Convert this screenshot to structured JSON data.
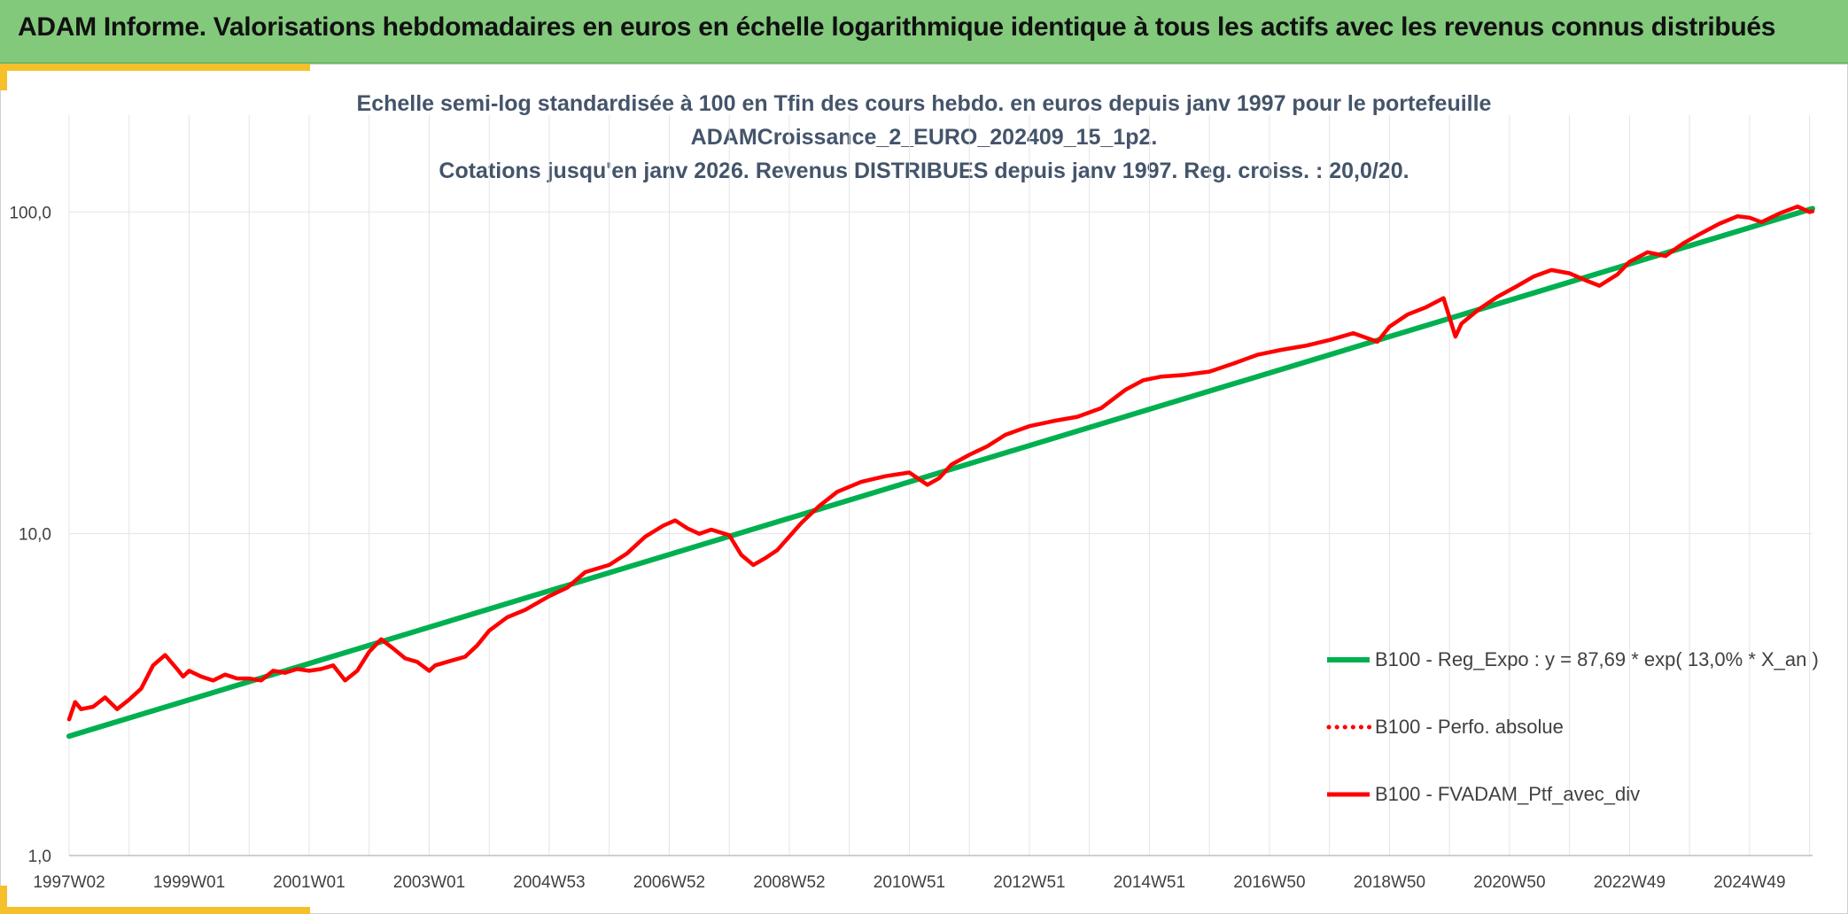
{
  "header": {
    "title": "ADAM Informe. Valorisations hebdomadaires en euros en échelle logarithmique identique à tous les actifs avec les revenus connus distribués"
  },
  "colors": {
    "banner": "#82c97c",
    "accent": "#f5c02a",
    "regression": "#00b050",
    "portfolio": "#ff0000",
    "grid": "#e4e4e4",
    "title": "#44546a"
  },
  "chart_data": {
    "type": "line",
    "title_lines": [
      "Echelle semi-log standardisée à 100 en Tfin des cours hebdo. en euros depuis janv 1997 pour le portefeuille",
      "ADAMCroissance_2_EURO_202409_15_1p2.",
      "Cotations jusqu'en janv 2026. Revenus DISTRIBUES depuis janv 1997. Reg. croiss. : 20,0/20."
    ],
    "xlabel": "",
    "ylabel": "",
    "y_scale": "log",
    "ylim": [
      1,
      200
    ],
    "y_ticks": [
      1,
      10,
      100
    ],
    "y_tick_labels": [
      "1,0",
      "10,0",
      "100,0"
    ],
    "xlim": [
      1997.0,
      2026.05
    ],
    "x_ticks": [
      1997.0,
      1999.0,
      2001.0,
      2003.0,
      2005.0,
      2007.0,
      2009.0,
      2011.0,
      2013.0,
      2015.0,
      2017.0,
      2019.0,
      2021.0,
      2023.0,
      2025.0
    ],
    "x_tick_labels": [
      "1997W02",
      "1999W01",
      "2001W01",
      "2003W01",
      "2004W53",
      "2006W52",
      "2008W52",
      "2010W51",
      "2012W51",
      "2014W51",
      "2016W50",
      "2018W50",
      "2020W50",
      "2022W49",
      "2024W49"
    ],
    "grid": true,
    "legend_position": "bottom-right",
    "series": [
      {
        "name": "B100 - Reg_Expo : y = 87,69 * exp( 13,0% *  X_an )",
        "style": "solid-thick",
        "x": [
          1997.0,
          2026.05
        ],
        "y": [
          2.35,
          102.5
        ]
      },
      {
        "name": "B100 - Perfo. absolue",
        "style": "dotted",
        "x": [],
        "y": []
      },
      {
        "name": "B100 - FVADAM_Ptf_avec_div",
        "style": "solid",
        "x": [
          1997.0,
          1997.1,
          1997.2,
          1997.4,
          1997.6,
          1997.8,
          1998.0,
          1998.2,
          1998.4,
          1998.6,
          1998.8,
          1998.9,
          1999.0,
          1999.2,
          1999.4,
          1999.6,
          1999.8,
          2000.0,
          2000.2,
          2000.4,
          2000.6,
          2000.8,
          2001.0,
          2001.2,
          2001.4,
          2001.6,
          2001.8,
          2002.0,
          2002.2,
          2002.4,
          2002.6,
          2002.8,
          2003.0,
          2003.1,
          2003.3,
          2003.6,
          2003.8,
          2004.0,
          2004.3,
          2004.6,
          2005.0,
          2005.3,
          2005.6,
          2006.0,
          2006.3,
          2006.6,
          2006.9,
          2007.1,
          2007.3,
          2007.5,
          2007.7,
          2008.0,
          2008.2,
          2008.4,
          2008.6,
          2008.8,
          2009.0,
          2009.2,
          2009.5,
          2009.8,
          2010.2,
          2010.6,
          2011.0,
          2011.3,
          2011.5,
          2011.7,
          2012.0,
          2012.3,
          2012.6,
          2013.0,
          2013.4,
          2013.8,
          2014.2,
          2014.6,
          2014.9,
          2015.2,
          2015.6,
          2016.0,
          2016.4,
          2016.8,
          2017.2,
          2017.6,
          2018.0,
          2018.4,
          2018.8,
          2019.0,
          2019.3,
          2019.6,
          2019.9,
          2020.1,
          2020.2,
          2020.5,
          2020.8,
          2021.1,
          2021.4,
          2021.7,
          2022.0,
          2022.3,
          2022.5,
          2022.8,
          2023.0,
          2023.3,
          2023.6,
          2023.9,
          2024.2,
          2024.5,
          2024.8,
          2025.0,
          2025.2,
          2025.5,
          2025.8,
          2026.0,
          2026.05
        ],
        "y": [
          2.65,
          3.0,
          2.85,
          2.9,
          3.1,
          2.85,
          3.05,
          3.3,
          3.9,
          4.2,
          3.8,
          3.6,
          3.75,
          3.6,
          3.5,
          3.65,
          3.55,
          3.55,
          3.5,
          3.75,
          3.7,
          3.8,
          3.75,
          3.8,
          3.9,
          3.5,
          3.75,
          4.3,
          4.7,
          4.4,
          4.1,
          4.0,
          3.75,
          3.9,
          4.0,
          4.15,
          4.5,
          5.0,
          5.5,
          5.8,
          6.4,
          6.8,
          7.6,
          8.0,
          8.7,
          9.8,
          10.6,
          11.0,
          10.4,
          10.0,
          10.3,
          9.9,
          8.6,
          8.0,
          8.4,
          8.9,
          9.8,
          10.8,
          12.2,
          13.5,
          14.5,
          15.1,
          15.5,
          14.2,
          14.9,
          16.4,
          17.6,
          18.7,
          20.3,
          21.6,
          22.4,
          23.1,
          24.6,
          28.0,
          30.0,
          30.8,
          31.2,
          31.9,
          33.8,
          36.0,
          37.3,
          38.4,
          40.0,
          42.0,
          39.5,
          44.0,
          48.0,
          50.5,
          54.0,
          41.0,
          45.0,
          50.0,
          54.5,
          58.5,
          63.0,
          66.0,
          64.5,
          61.0,
          59.0,
          64.0,
          70.0,
          75.0,
          73.0,
          80.0,
          86.0,
          92.0,
          97.0,
          96.0,
          93.0,
          99.0,
          104.0,
          100.0,
          100.5
        ]
      }
    ]
  },
  "legend": {
    "items": [
      {
        "label": "B100 - Reg_Expo : y = 87,69 * exp( 13,0% *  X_an )",
        "color": "#00b050",
        "style": "solid-thick"
      },
      {
        "label": "B100 - Perfo. absolue",
        "color": "#ff0000",
        "style": "dotted"
      },
      {
        "label": "B100 - FVADAM_Ptf_avec_div",
        "color": "#ff0000",
        "style": "solid"
      }
    ]
  }
}
